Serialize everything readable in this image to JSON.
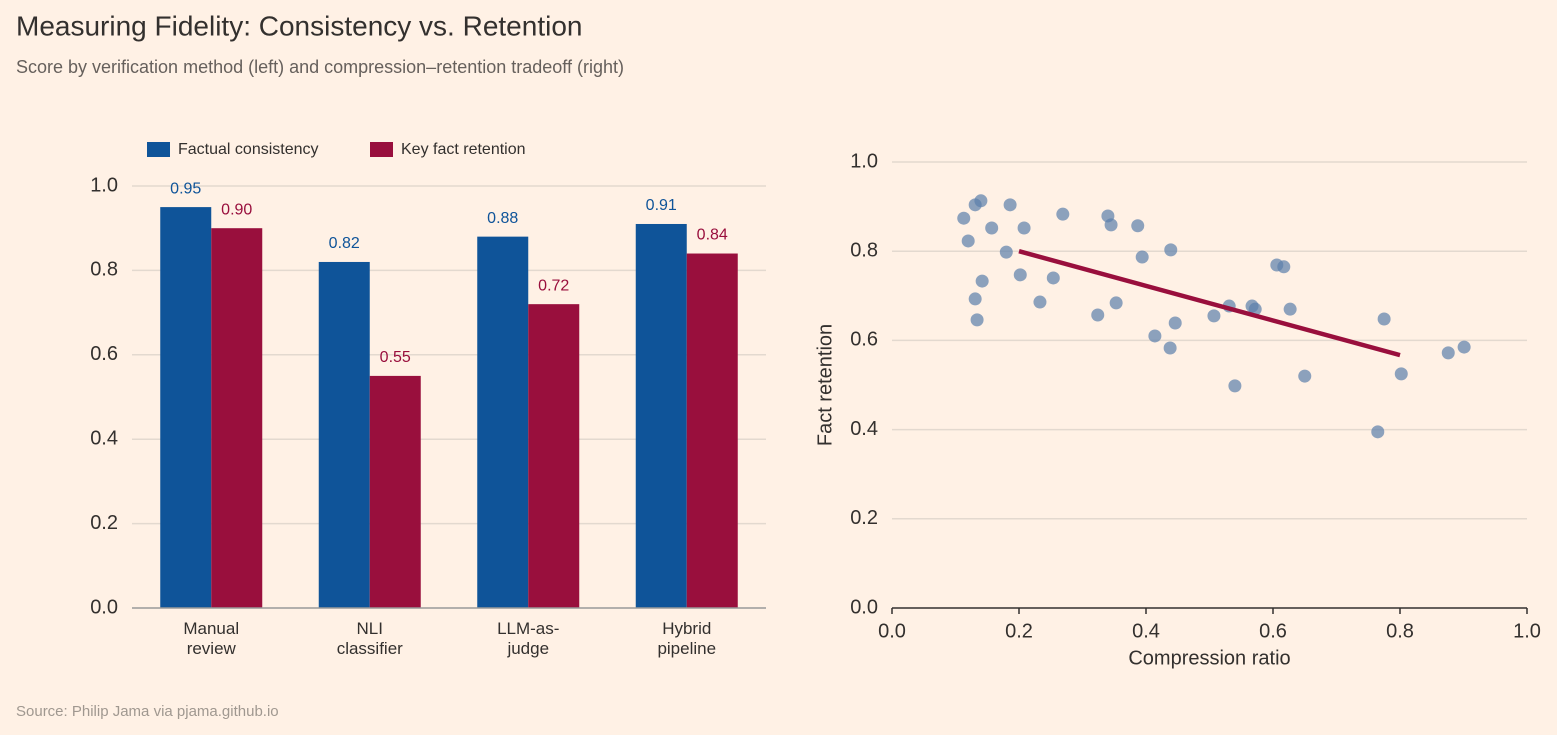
{
  "title": "Measuring Fidelity: Consistency vs. Retention",
  "subtitle": "Score by verification method (left) and compression–retention tradeoff (right)",
  "source": "Source: Philip Jama via pjama.github.io",
  "chart_data": [
    {
      "type": "bar",
      "categories": [
        [
          "Manual",
          "review"
        ],
        [
          "NLI",
          "classifier"
        ],
        [
          "LLM-as-",
          "judge"
        ],
        [
          "Hybrid",
          "pipeline"
        ]
      ],
      "series": [
        {
          "name": "Factual consistency",
          "color": "#0f5499",
          "values": [
            0.95,
            0.82,
            0.88,
            0.91
          ],
          "value_labels": [
            "0.95",
            "0.82",
            "0.88",
            "0.91"
          ]
        },
        {
          "name": "Key fact retention",
          "color": "#990f3d",
          "values": [
            0.9,
            0.55,
            0.72,
            0.84
          ],
          "value_labels": [
            "0.90",
            "0.55",
            "0.72",
            "0.84"
          ]
        }
      ],
      "ylim": [
        0,
        1.1
      ],
      "yticks": [
        {
          "value": 0,
          "label": "0.0"
        },
        0.2,
        0.4,
        0.6,
        0.8,
        {
          "value": 1,
          "label": "1.0"
        }
      ],
      "grid": true,
      "legend": "top-left"
    },
    {
      "type": "scatter",
      "x_label": "Compression ratio",
      "y_label": "Fact retention",
      "color": "#5b7fab",
      "x": [
        0.113,
        0.12,
        0.131,
        0.14,
        0.131,
        0.134,
        0.142,
        0.157,
        0.18,
        0.186,
        0.202,
        0.208,
        0.233,
        0.254,
        0.269,
        0.324,
        0.34,
        0.345,
        0.353,
        0.387,
        0.394,
        0.414,
        0.438,
        0.439,
        0.446,
        0.507,
        0.531,
        0.54,
        0.567,
        0.572,
        0.606,
        0.617,
        0.627,
        0.65,
        0.765,
        0.775,
        0.802,
        0.876,
        0.901
      ],
      "y": [
        0.874,
        0.823,
        0.904,
        0.913,
        0.693,
        0.646,
        0.733,
        0.852,
        0.798,
        0.904,
        0.747,
        0.852,
        0.686,
        0.74,
        0.883,
        0.657,
        0.879,
        0.859,
        0.684,
        0.857,
        0.787,
        0.61,
        0.583,
        0.803,
        0.639,
        0.655,
        0.677,
        0.498,
        0.677,
        0.67,
        0.769,
        0.765,
        0.67,
        0.52,
        0.395,
        0.648,
        0.525,
        0.572,
        0.585
      ],
      "trend": {
        "color": "#990f3d",
        "x": [
          0.2,
          0.8
        ],
        "y": [
          0.8,
          0.567
        ]
      },
      "xlim": [
        0,
        1
      ],
      "ylim": [
        0,
        1.0
      ],
      "xticks": [
        {
          "value": 0,
          "label": "0.0"
        },
        0.2,
        0.4,
        0.6,
        0.8,
        {
          "value": 1,
          "label": "1.0"
        }
      ],
      "yticks": [
        {
          "value": 0,
          "label": "0.0"
        },
        0.2,
        0.4,
        0.6,
        0.8,
        {
          "value": 1,
          "label": "1.0"
        }
      ],
      "grid": true
    }
  ]
}
